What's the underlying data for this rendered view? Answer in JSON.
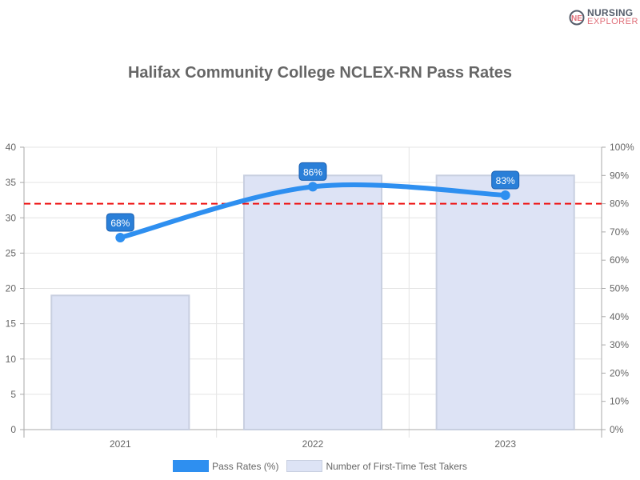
{
  "logo": {
    "line1": "NURSING",
    "line2": "EXPLORER"
  },
  "chart_data": {
    "type": "bar+line",
    "title": "Halifax Community College NCLEX-RN Pass Rates",
    "categories": [
      "2021",
      "2022",
      "2023"
    ],
    "series": [
      {
        "name": "Pass Rates (%)",
        "type": "line",
        "axis": "right",
        "values": [
          68,
          86,
          83
        ],
        "labels": [
          "68%",
          "86%",
          "83%"
        ],
        "color": "#2e8ff0"
      },
      {
        "name": "Number of First-Time Test Takers",
        "type": "bar",
        "axis": "left",
        "values": [
          19,
          36,
          36
        ],
        "color": "#dde3f5"
      }
    ],
    "left_axis": {
      "range": [
        0,
        40
      ],
      "ticks": [
        "0",
        "5",
        "10",
        "15",
        "20",
        "25",
        "30",
        "35",
        "40"
      ]
    },
    "right_axis": {
      "range": [
        0,
        100
      ],
      "ticks": [
        "0%",
        "10%",
        "20%",
        "30%",
        "40%",
        "50%",
        "60%",
        "70%",
        "80%",
        "90%",
        "100%"
      ]
    },
    "reference_line": {
      "value": 80,
      "axis": "right",
      "style": "dashed",
      "color": "#ee1111"
    },
    "grid": true,
    "legend": "bottom"
  }
}
